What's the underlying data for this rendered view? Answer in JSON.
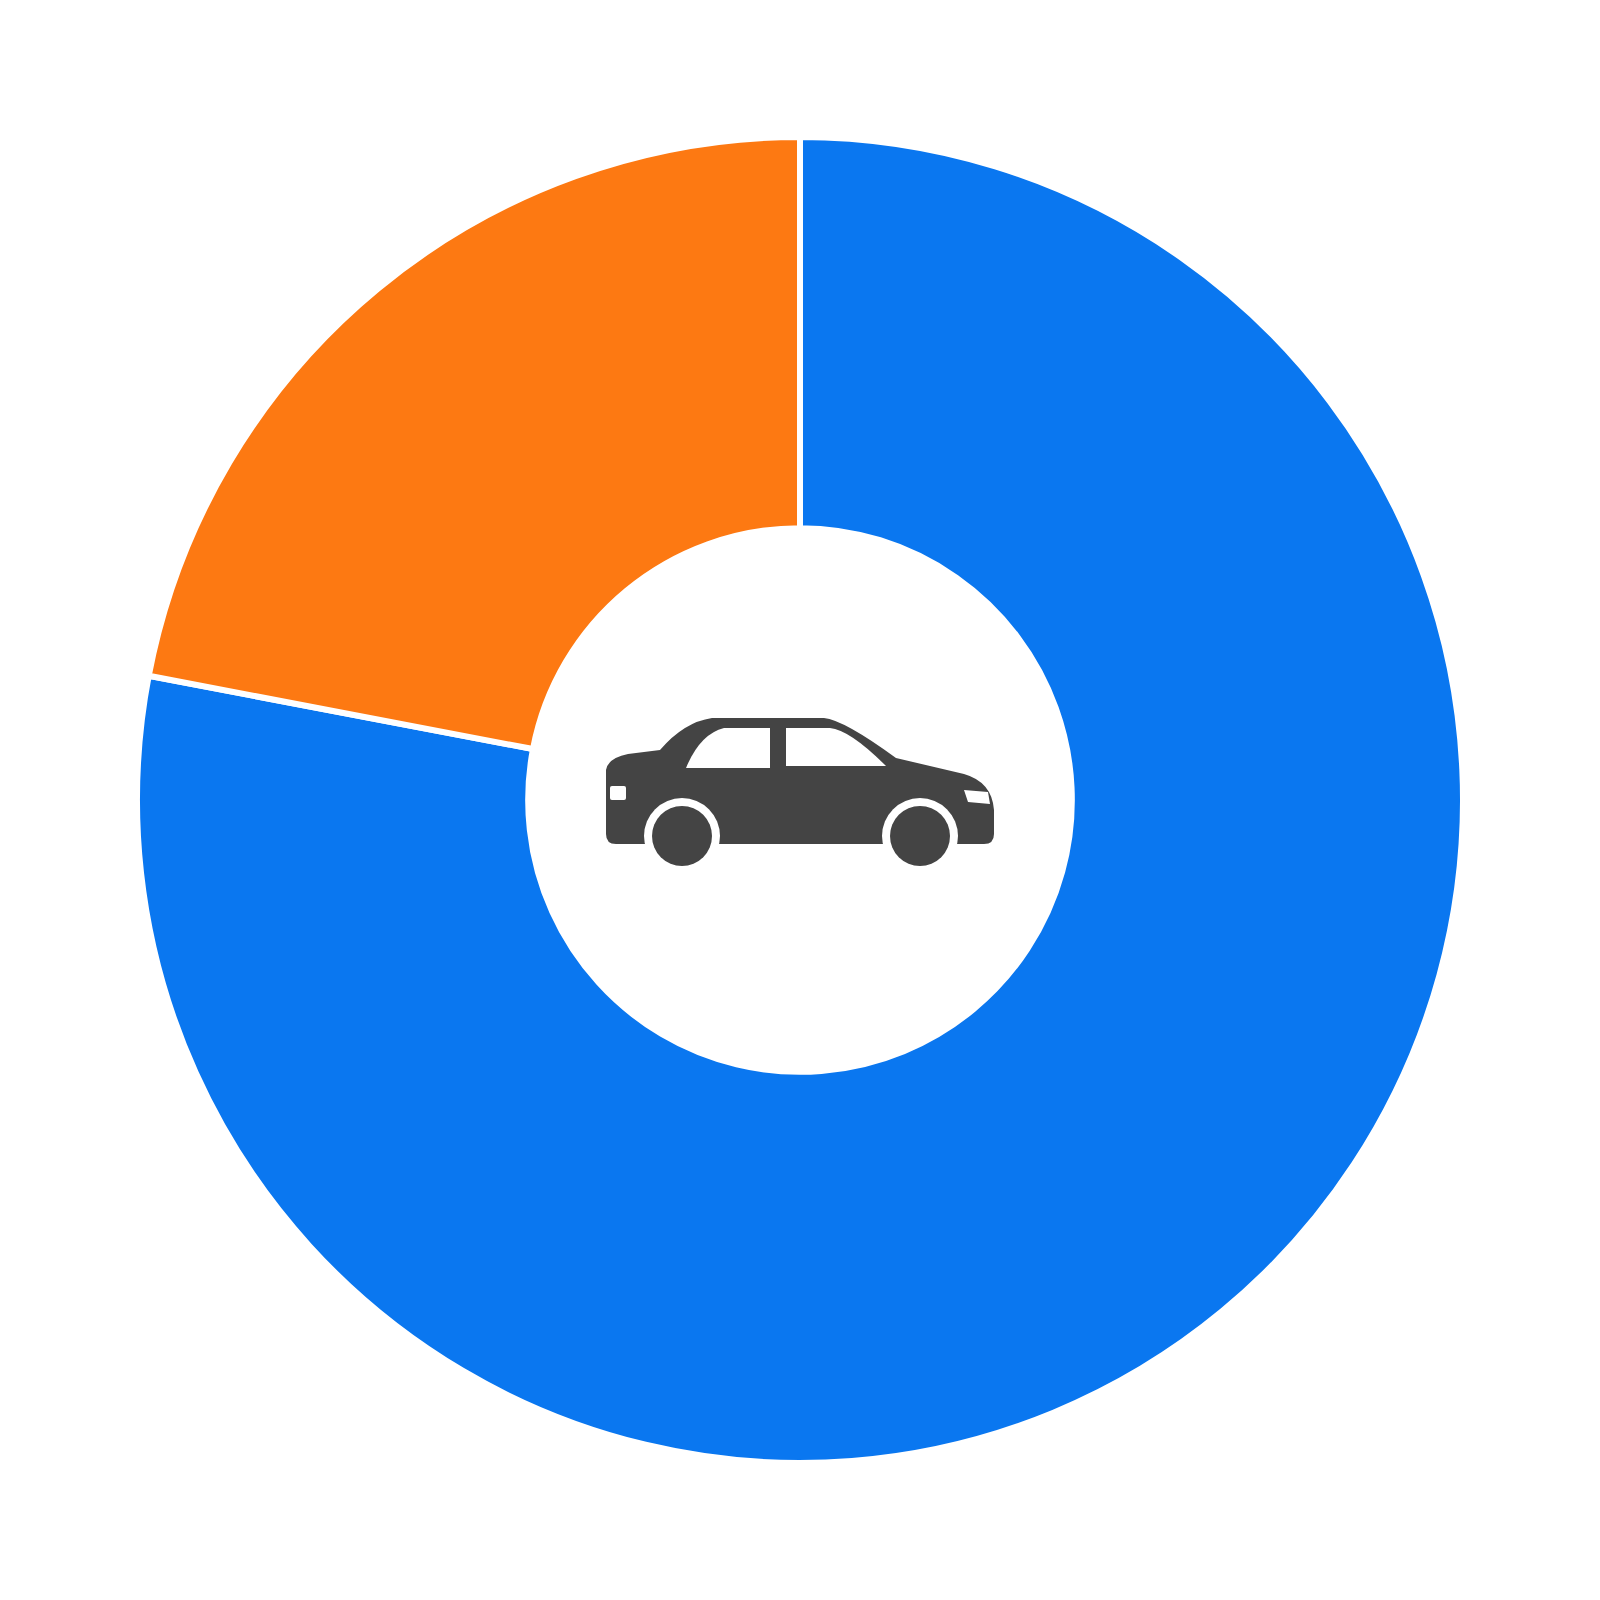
{
  "chart_data": {
    "type": "donut",
    "categories": [
      null,
      null
    ],
    "values": [
      78,
      22
    ],
    "colors": [
      "#0a77f0",
      "#fd7912"
    ]
  }
}
